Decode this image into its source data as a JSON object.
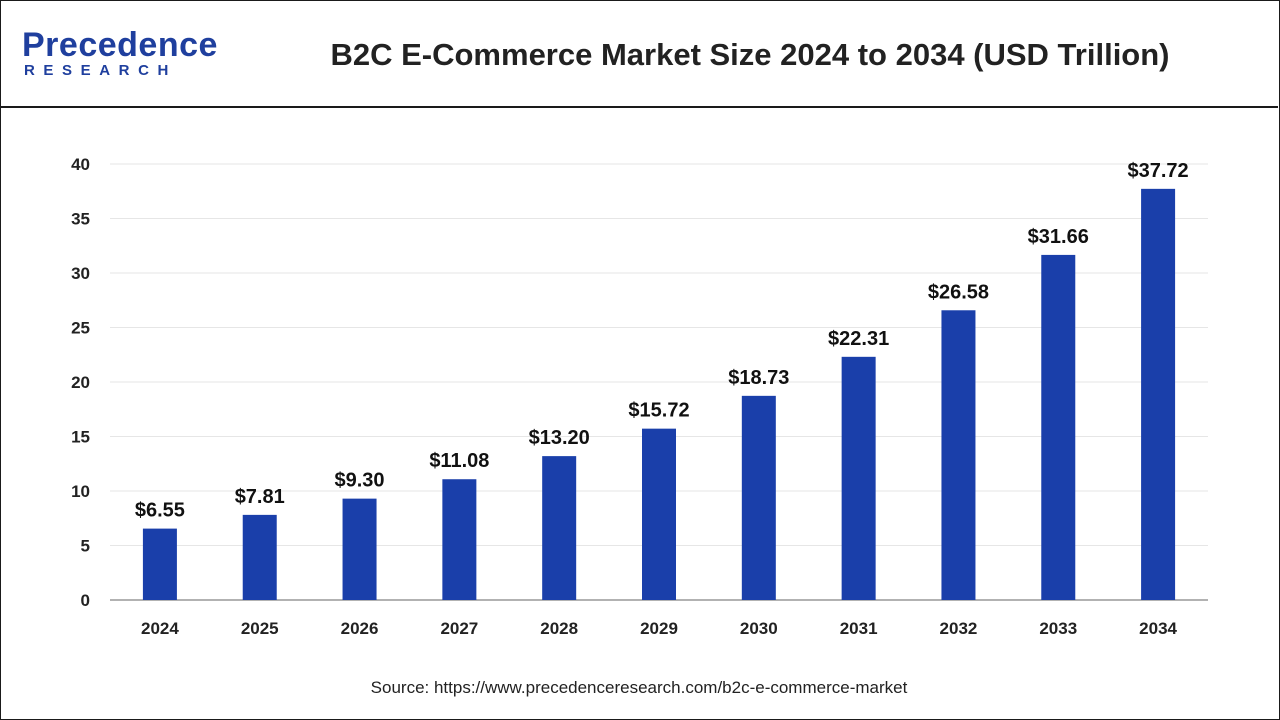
{
  "header": {
    "logo_main": "Precedence",
    "logo_sub": "RESEARCH",
    "title": "B2C E-Commerce Market Size 2024 to 2034 (USD Trillion)"
  },
  "chart_data": {
    "type": "bar",
    "title": "B2C E-Commerce Market Size 2024 to 2034 (USD Trillion)",
    "xlabel": "",
    "ylabel": "",
    "categories": [
      "2024",
      "2025",
      "2026",
      "2027",
      "2028",
      "2029",
      "2030",
      "2031",
      "2032",
      "2033",
      "2034"
    ],
    "values": [
      6.55,
      7.81,
      9.3,
      11.08,
      13.2,
      15.72,
      18.73,
      22.31,
      26.58,
      31.66,
      37.72
    ],
    "data_labels": [
      "$6.55",
      "$7.81",
      "$9.30",
      "$11.08",
      "$13.20",
      "$15.72",
      "$18.73",
      "$22.31",
      "$26.58",
      "$31.66",
      "$37.72"
    ],
    "ylim": [
      0,
      40
    ],
    "yticks": [
      0,
      5,
      10,
      15,
      20,
      25,
      30,
      35,
      40
    ],
    "grid": true,
    "legend": "none",
    "bar_color": "#1a3faa",
    "grid_color": "#e6e6e6",
    "axis_color": "#999999"
  },
  "footer": {
    "source": "Source: https://www.precedenceresearch.com/b2c-e-commerce-market"
  }
}
